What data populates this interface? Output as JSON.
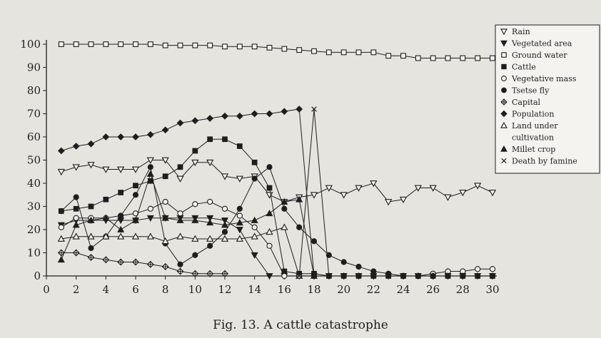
{
  "caption": {
    "number": "Fig. 13.",
    "text": "A cattle catastrophe"
  },
  "chart_data": {
    "type": "line",
    "title": "",
    "xlabel": "",
    "ylabel": "",
    "xlim": [
      0,
      30
    ],
    "ylim": [
      0,
      100
    ],
    "xticks": [
      0,
      2,
      4,
      6,
      8,
      10,
      12,
      14,
      16,
      18,
      20,
      22,
      24,
      26,
      28,
      30
    ],
    "yticks": [
      0,
      10,
      20,
      30,
      40,
      50,
      60,
      70,
      80,
      90,
      100
    ],
    "grid": false,
    "legend_position": "top-right",
    "series": [
      {
        "name": "Rain",
        "marker": "triangle-down-open",
        "points": [
          [
            1,
            45
          ],
          [
            2,
            47
          ],
          [
            3,
            48
          ],
          [
            4,
            46
          ],
          [
            5,
            46
          ],
          [
            6,
            46
          ],
          [
            7,
            50
          ],
          [
            8,
            50
          ],
          [
            9,
            42
          ],
          [
            10,
            49
          ],
          [
            11,
            49
          ],
          [
            12,
            43
          ],
          [
            13,
            42
          ],
          [
            14,
            43
          ],
          [
            15,
            35
          ],
          [
            16,
            32
          ],
          [
            17,
            34
          ],
          [
            18,
            35
          ],
          [
            19,
            38
          ],
          [
            20,
            35
          ],
          [
            21,
            38
          ],
          [
            22,
            40
          ],
          [
            23,
            32
          ],
          [
            24,
            33
          ],
          [
            25,
            38
          ],
          [
            26,
            38
          ],
          [
            27,
            34
          ],
          [
            28,
            36
          ],
          [
            29,
            39
          ],
          [
            30,
            36
          ]
        ]
      },
      {
        "name": "Vegetated area",
        "marker": "triangle-down-filled",
        "points": [
          [
            1,
            22
          ],
          [
            2,
            24
          ],
          [
            3,
            24
          ],
          [
            4,
            24
          ],
          [
            5,
            24
          ],
          [
            6,
            24
          ],
          [
            7,
            25
          ],
          [
            8,
            25
          ],
          [
            9,
            25
          ],
          [
            10,
            25
          ],
          [
            11,
            25
          ],
          [
            12,
            24
          ],
          [
            13,
            20
          ],
          [
            14,
            9
          ],
          [
            15,
            0
          ],
          [
            16,
            0
          ],
          [
            17,
            0
          ],
          [
            18,
            0
          ],
          [
            19,
            0
          ],
          [
            20,
            0
          ],
          [
            21,
            0
          ],
          [
            22,
            0
          ],
          [
            23,
            0
          ],
          [
            24,
            0
          ],
          [
            25,
            0
          ],
          [
            26,
            0
          ],
          [
            27,
            0
          ],
          [
            28,
            0
          ],
          [
            29,
            0
          ],
          [
            30,
            0
          ]
        ]
      },
      {
        "name": "Ground water",
        "marker": "square-open",
        "points": [
          [
            1,
            100
          ],
          [
            2,
            100
          ],
          [
            3,
            100
          ],
          [
            4,
            100
          ],
          [
            5,
            100
          ],
          [
            6,
            100
          ],
          [
            7,
            100
          ],
          [
            8,
            99.5
          ],
          [
            9,
            99.5
          ],
          [
            10,
            99.5
          ],
          [
            11,
            99.5
          ],
          [
            12,
            99
          ],
          [
            13,
            99
          ],
          [
            14,
            99
          ],
          [
            15,
            98.5
          ],
          [
            16,
            98
          ],
          [
            17,
            97.5
          ],
          [
            18,
            97
          ],
          [
            19,
            96.5
          ],
          [
            20,
            96.5
          ],
          [
            21,
            96.5
          ],
          [
            22,
            96.5
          ],
          [
            23,
            95
          ],
          [
            24,
            95
          ],
          [
            25,
            94
          ],
          [
            26,
            94
          ],
          [
            27,
            94
          ],
          [
            28,
            94
          ],
          [
            29,
            94
          ],
          [
            30,
            94
          ]
        ]
      },
      {
        "name": "Cattle",
        "marker": "square-filled",
        "points": [
          [
            1,
            28
          ],
          [
            2,
            29
          ],
          [
            3,
            30
          ],
          [
            4,
            33
          ],
          [
            5,
            36
          ],
          [
            6,
            39
          ],
          [
            7,
            41
          ],
          [
            8,
            43
          ],
          [
            9,
            47
          ],
          [
            10,
            54
          ],
          [
            11,
            59
          ],
          [
            12,
            59
          ],
          [
            13,
            56
          ],
          [
            14,
            49
          ],
          [
            15,
            38
          ],
          [
            16,
            2
          ],
          [
            17,
            1
          ],
          [
            18,
            1
          ],
          [
            19,
            0
          ],
          [
            20,
            0
          ],
          [
            21,
            0
          ],
          [
            22,
            0
          ],
          [
            23,
            0
          ],
          [
            24,
            0
          ],
          [
            25,
            0
          ],
          [
            26,
            0
          ],
          [
            27,
            0
          ],
          [
            28,
            0
          ],
          [
            29,
            0
          ],
          [
            30,
            0
          ]
        ]
      },
      {
        "name": "Vegetative mass",
        "marker": "circle-open",
        "points": [
          [
            1,
            21
          ],
          [
            2,
            25
          ],
          [
            3,
            25
          ],
          [
            4,
            25
          ],
          [
            5,
            26
          ],
          [
            6,
            27
          ],
          [
            7,
            29
          ],
          [
            8,
            32
          ],
          [
            9,
            27
          ],
          [
            10,
            31
          ],
          [
            11,
            32
          ],
          [
            12,
            29
          ],
          [
            13,
            26
          ],
          [
            14,
            21
          ],
          [
            15,
            13
          ],
          [
            16,
            0
          ],
          [
            17,
            0
          ],
          [
            18,
            0
          ],
          [
            19,
            0
          ],
          [
            20,
            0
          ],
          [
            21,
            0
          ],
          [
            22,
            0
          ],
          [
            23,
            0
          ],
          [
            24,
            0
          ],
          [
            25,
            0
          ],
          [
            26,
            1
          ],
          [
            27,
            2
          ],
          [
            28,
            2
          ],
          [
            29,
            3
          ],
          [
            30,
            3
          ]
        ]
      },
      {
        "name": "Tsetse fly",
        "marker": "circle-filled",
        "points": [
          [
            1,
            28
          ],
          [
            2,
            34
          ],
          [
            3,
            12
          ],
          [
            4,
            17
          ],
          [
            5,
            26
          ],
          [
            6,
            35
          ],
          [
            7,
            47
          ],
          [
            8,
            14
          ],
          [
            9,
            5
          ],
          [
            10,
            9
          ],
          [
            11,
            13
          ],
          [
            12,
            19
          ],
          [
            13,
            29
          ],
          [
            14,
            42
          ],
          [
            15,
            47
          ],
          [
            16,
            29
          ],
          [
            17,
            21
          ],
          [
            18,
            15
          ],
          [
            19,
            9
          ],
          [
            20,
            6
          ],
          [
            21,
            4
          ],
          [
            22,
            2
          ],
          [
            23,
            1
          ],
          [
            24,
            0
          ],
          [
            25,
            0
          ],
          [
            26,
            0
          ],
          [
            27,
            0
          ],
          [
            28,
            0
          ],
          [
            29,
            0
          ],
          [
            30,
            0
          ]
        ]
      },
      {
        "name": "Capital",
        "marker": "diamond-cross",
        "points": [
          [
            1,
            10
          ],
          [
            2,
            10
          ],
          [
            3,
            8
          ],
          [
            4,
            7
          ],
          [
            5,
            6
          ],
          [
            6,
            6
          ],
          [
            7,
            5
          ],
          [
            8,
            4
          ],
          [
            9,
            2
          ],
          [
            10,
            1
          ],
          [
            11,
            1
          ],
          [
            12,
            1
          ]
        ]
      },
      {
        "name": "Population",
        "marker": "diamond-filled",
        "points": [
          [
            1,
            54
          ],
          [
            2,
            56
          ],
          [
            3,
            57
          ],
          [
            4,
            60
          ],
          [
            5,
            60
          ],
          [
            6,
            60
          ],
          [
            7,
            61
          ],
          [
            8,
            63
          ],
          [
            9,
            66
          ],
          [
            10,
            67
          ],
          [
            11,
            68
          ],
          [
            12,
            69
          ],
          [
            13,
            69
          ],
          [
            14,
            70
          ],
          [
            15,
            70
          ],
          [
            16,
            71
          ],
          [
            17,
            72
          ],
          [
            18,
            0
          ],
          [
            19,
            0
          ],
          [
            20,
            0
          ],
          [
            21,
            0
          ],
          [
            22,
            0
          ],
          [
            23,
            0
          ],
          [
            24,
            0
          ],
          [
            25,
            0
          ],
          [
            26,
            0
          ],
          [
            27,
            0
          ],
          [
            28,
            0
          ],
          [
            29,
            0
          ],
          [
            30,
            0
          ]
        ]
      },
      {
        "name": "Land under cultivation",
        "marker": "triangle-up-open",
        "points": [
          [
            1,
            16
          ],
          [
            2,
            17
          ],
          [
            3,
            17
          ],
          [
            4,
            17
          ],
          [
            5,
            17
          ],
          [
            6,
            17
          ],
          [
            7,
            17
          ],
          [
            8,
            15
          ],
          [
            9,
            17
          ],
          [
            10,
            16
          ],
          [
            11,
            16
          ],
          [
            12,
            16
          ],
          [
            13,
            16
          ],
          [
            14,
            17
          ],
          [
            15,
            19
          ],
          [
            16,
            21
          ],
          [
            17,
            0
          ]
        ]
      },
      {
        "name": "Millet crop",
        "marker": "triangle-up-filled",
        "points": [
          [
            1,
            7
          ],
          [
            2,
            22
          ],
          [
            3,
            24
          ],
          [
            4,
            25
          ],
          [
            5,
            20
          ],
          [
            6,
            24
          ],
          [
            7,
            44
          ],
          [
            8,
            25
          ],
          [
            9,
            24
          ],
          [
            10,
            24
          ],
          [
            11,
            23
          ],
          [
            12,
            22
          ],
          [
            13,
            23
          ],
          [
            14,
            24
          ],
          [
            15,
            27
          ],
          [
            16,
            32
          ],
          [
            17,
            33
          ],
          [
            18,
            0
          ]
        ]
      },
      {
        "name": "Death by famine",
        "marker": "cross",
        "points": [
          [
            17,
            0
          ],
          [
            18,
            72
          ],
          [
            19,
            0
          ]
        ]
      }
    ]
  }
}
